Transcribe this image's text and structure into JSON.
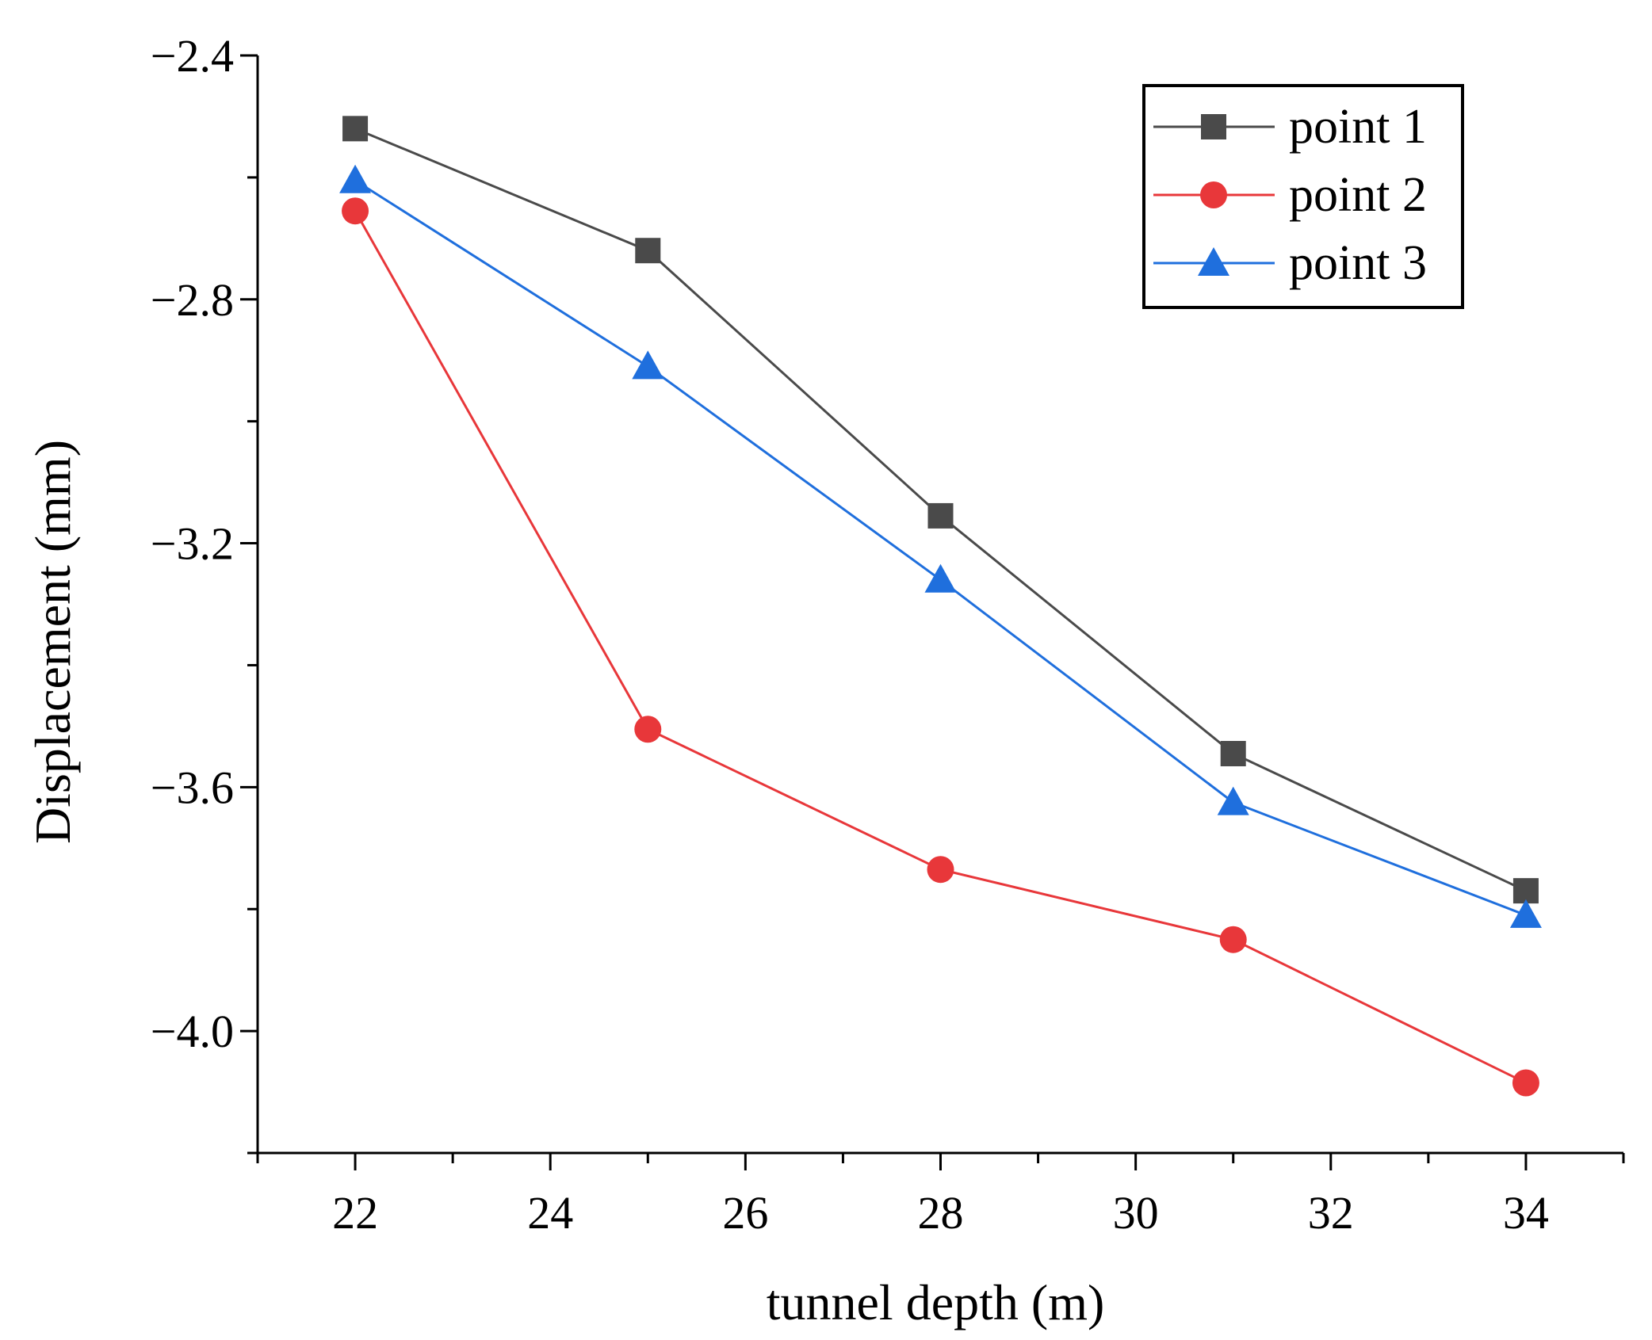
{
  "chart_data": {
    "type": "line",
    "title": "",
    "xlabel": "tunnel depth (m)",
    "ylabel": "Displacement (mm)",
    "x": [
      22,
      25,
      28,
      31,
      34
    ],
    "xlim": [
      21,
      35
    ],
    "ylim": [
      -4.2,
      -2.4
    ],
    "xticks": [
      22,
      24,
      26,
      28,
      30,
      32,
      34
    ],
    "xtick_labels": [
      "22",
      "24",
      "26",
      "28",
      "30",
      "32",
      "34"
    ],
    "yticks": [
      -2.4,
      -2.8,
      -3.2,
      -3.6,
      -4.0
    ],
    "ytick_labels": [
      "−2.4",
      "−2.8",
      "−3.2",
      "−3.6",
      "−4.0"
    ],
    "grid": false,
    "legend_position": "top-right",
    "series": [
      {
        "name": "point 1",
        "color": "#4a4a4a",
        "marker": "square",
        "values": [
          -2.52,
          -2.72,
          -3.155,
          -3.545,
          -3.77
        ]
      },
      {
        "name": "point 2",
        "color": "#e8373a",
        "marker": "circle",
        "values": [
          -2.655,
          -3.505,
          -3.735,
          -3.85,
          -4.085
        ]
      },
      {
        "name": "point 3",
        "color": "#1f6fdd",
        "marker": "triangle",
        "values": [
          -2.605,
          -2.91,
          -3.26,
          -3.625,
          -3.81
        ]
      }
    ]
  }
}
